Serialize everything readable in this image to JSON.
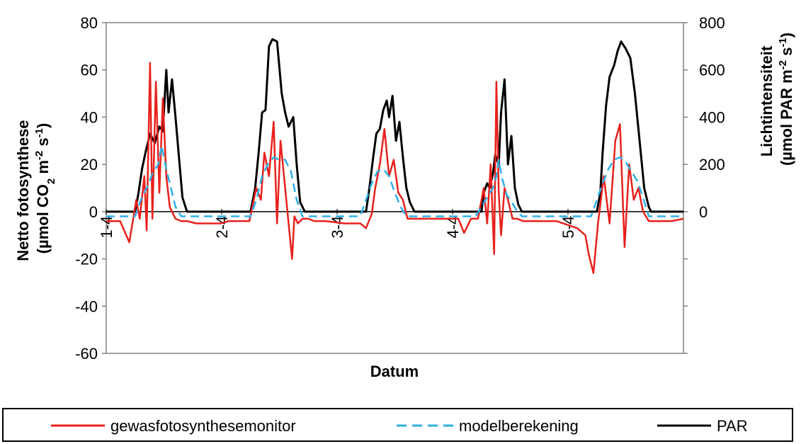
{
  "chart_data": {
    "type": "line",
    "xlabel": "Datum",
    "ylabel_left": [
      "Netto fotosynthese",
      "(µmol CO",
      "2",
      " m",
      "-2",
      " s",
      "-1",
      ")"
    ],
    "ylabel_right": [
      "Lichtintensiteit",
      "(µmol PAR m",
      "-2",
      " s",
      "-1",
      ")"
    ],
    "ylim_left": [
      -60,
      80
    ],
    "yticks_left": [
      -60,
      -40,
      -20,
      0,
      20,
      40,
      60,
      80
    ],
    "ylim_right": [
      -600,
      800
    ],
    "yticks_right": [
      0,
      200,
      400,
      600,
      800
    ],
    "xlim": [
      1,
      6
    ],
    "xticks": [
      {
        "value": 1,
        "label": "1-4"
      },
      {
        "value": 2,
        "label": "2-4"
      },
      {
        "value": 3,
        "label": "3-4"
      },
      {
        "value": 4,
        "label": "4-4"
      },
      {
        "value": 5,
        "label": "5-4"
      }
    ],
    "grid": false,
    "legend_position": "bottom",
    "series": [
      {
        "name": "gewasfotosynthesemonitor",
        "axis": "left",
        "color": "#e8211d",
        "style": "solid",
        "x": [
          1.0,
          1.06,
          1.12,
          1.2,
          1.26,
          1.29,
          1.33,
          1.35,
          1.38,
          1.4,
          1.43,
          1.46,
          1.49,
          1.52,
          1.55,
          1.6,
          1.65,
          1.7,
          1.78,
          1.88,
          1.99,
          2.06,
          2.12,
          2.24,
          2.3,
          2.34,
          2.37,
          2.41,
          2.45,
          2.48,
          2.51,
          2.55,
          2.58,
          2.61,
          2.63,
          2.66,
          2.7,
          2.75,
          2.8,
          2.9,
          3.06,
          3.2,
          3.25,
          3.3,
          3.33,
          3.37,
          3.41,
          3.45,
          3.49,
          3.53,
          3.57,
          3.61,
          3.66,
          3.72,
          3.8,
          3.88,
          3.97,
          4.05,
          4.1,
          4.16,
          4.22,
          4.27,
          4.3,
          4.33,
          4.36,
          4.38,
          4.4,
          4.42,
          4.45,
          4.48,
          4.52,
          4.56,
          4.61,
          4.7,
          4.8,
          4.9,
          5.08,
          5.15,
          5.18,
          5.22,
          5.26,
          5.31,
          5.36,
          5.41,
          5.45,
          5.49,
          5.53,
          5.57,
          5.61,
          5.65,
          5.7,
          5.76,
          5.82,
          5.9,
          6.0
        ],
        "values": [
          -4,
          -4,
          -4,
          -13,
          5,
          -3,
          15,
          -8,
          63,
          -3,
          55,
          8,
          48,
          15,
          2,
          -3,
          -4,
          -4,
          -5,
          -5,
          -5,
          -4,
          -4,
          -4,
          10,
          5,
          25,
          15,
          38,
          -5,
          30,
          10,
          -5,
          -20,
          -2,
          -5,
          -3,
          -3,
          -4,
          -4,
          -5,
          -5,
          -7,
          -1,
          10,
          20,
          35,
          15,
          22,
          8,
          5,
          -3,
          -3,
          -3,
          -3,
          -3,
          -3,
          -3,
          -9,
          -3,
          -3,
          10,
          -5,
          20,
          -18,
          55,
          8,
          -10,
          10,
          5,
          -3,
          -3,
          -4,
          -4,
          -4,
          -4,
          -7,
          -10,
          -18,
          -26,
          -5,
          15,
          -5,
          30,
          37,
          -15,
          20,
          5,
          10,
          0,
          -4,
          -4,
          -4,
          -4,
          -3
        ]
      },
      {
        "name": "modelberekening",
        "axis": "left",
        "color": "#2eb0e8",
        "style": "dashed",
        "x": [
          1.0,
          1.1,
          1.25,
          1.3,
          1.35,
          1.4,
          1.45,
          1.48,
          1.52,
          1.55,
          1.6,
          1.65,
          1.7,
          1.8,
          1.99,
          2.1,
          2.25,
          2.3,
          2.35,
          2.4,
          2.45,
          2.5,
          2.55,
          2.6,
          2.65,
          2.7,
          2.8,
          3.0,
          3.2,
          3.25,
          3.3,
          3.35,
          3.4,
          3.45,
          3.5,
          3.55,
          3.6,
          3.65,
          3.7,
          3.8,
          4.0,
          4.2,
          4.25,
          4.3,
          4.35,
          4.38,
          4.4,
          4.43,
          4.47,
          4.5,
          4.55,
          4.6,
          4.7,
          4.9,
          5.15,
          5.2,
          5.25,
          5.3,
          5.35,
          5.4,
          5.45,
          5.5,
          5.55,
          5.6,
          5.65,
          5.7,
          5.8,
          6.0
        ],
        "values": [
          -2,
          -2,
          -2,
          5,
          10,
          16,
          20,
          28,
          18,
          12,
          2,
          -2,
          -2,
          -2,
          -2,
          -2,
          -2,
          5,
          15,
          20,
          23,
          22,
          22,
          17,
          5,
          -2,
          -2,
          -2,
          -2,
          5,
          12,
          17,
          18,
          15,
          8,
          2,
          -2,
          -2,
          -2,
          -2,
          -2,
          -2,
          2,
          6,
          10,
          15,
          22,
          14,
          7,
          5,
          1,
          -2,
          -2,
          -2,
          -2,
          -2,
          5,
          12,
          18,
          22,
          23,
          21,
          17,
          13,
          6,
          -2,
          -2,
          -2
        ]
      },
      {
        "name": "PAR",
        "axis": "right",
        "color": "#000000",
        "style": "solid",
        "x": [
          1.0,
          1.25,
          1.28,
          1.31,
          1.34,
          1.38,
          1.42,
          1.46,
          1.49,
          1.52,
          1.54,
          1.57,
          1.6,
          1.63,
          1.66,
          1.7,
          2.25,
          2.29,
          2.32,
          2.35,
          2.38,
          2.41,
          2.44,
          2.48,
          2.52,
          2.55,
          2.58,
          2.62,
          2.65,
          2.68,
          2.72,
          2.75,
          3.25,
          3.28,
          3.31,
          3.34,
          3.37,
          3.4,
          3.43,
          3.45,
          3.48,
          3.51,
          3.54,
          3.57,
          3.6,
          3.63,
          3.67,
          4.25,
          4.27,
          4.3,
          4.32,
          4.35,
          4.37,
          4.4,
          4.42,
          4.45,
          4.48,
          4.51,
          4.54,
          4.57,
          4.6,
          4.63,
          5.25,
          5.28,
          5.3,
          5.33,
          5.36,
          5.4,
          5.43,
          5.46,
          5.5,
          5.54,
          5.58,
          5.62,
          5.66,
          5.7,
          5.72,
          6.0
        ],
        "values": [
          0,
          0,
          80,
          180,
          250,
          330,
          290,
          360,
          340,
          600,
          420,
          560,
          400,
          230,
          60,
          0,
          0,
          100,
          250,
          420,
          430,
          700,
          730,
          720,
          500,
          420,
          360,
          400,
          200,
          40,
          0,
          0,
          0,
          100,
          220,
          330,
          350,
          430,
          470,
          400,
          490,
          300,
          380,
          230,
          100,
          40,
          0,
          0,
          80,
          120,
          100,
          160,
          240,
          200,
          420,
          560,
          200,
          320,
          100,
          30,
          0,
          0,
          0,
          80,
          250,
          450,
          570,
          620,
          680,
          720,
          690,
          650,
          500,
          300,
          100,
          20,
          0,
          0
        ]
      }
    ]
  },
  "legend": {
    "items": [
      {
        "label": "gewasfotosynthesemonitor",
        "color": "#e8211d",
        "style": "solid"
      },
      {
        "label": "modelberekening",
        "color": "#2eb0e8",
        "style": "dashed"
      },
      {
        "label": "PAR",
        "color": "#000000",
        "style": "solid"
      }
    ]
  }
}
